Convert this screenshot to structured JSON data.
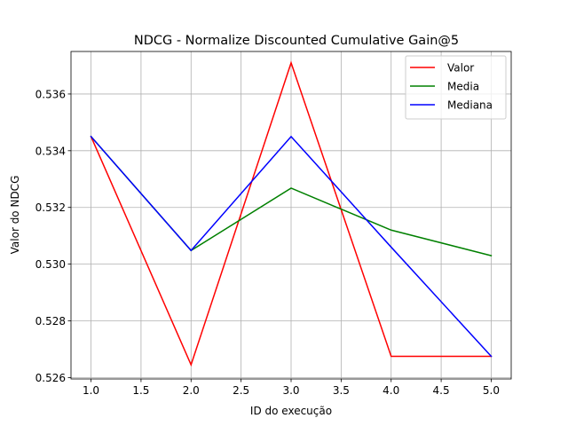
{
  "chart_data": {
    "type": "line",
    "title": "NDCG - Normalize Discounted Cumulative Gain@5",
    "xlabel": "ID do execução",
    "ylabel": "Valor do NDCG",
    "x": [
      1.0,
      2.0,
      3.0,
      4.0,
      5.0
    ],
    "xlim": [
      0.8,
      5.2
    ],
    "ylim": [
      0.52595,
      0.5375
    ],
    "xticks": [
      1.0,
      1.5,
      2.0,
      2.5,
      3.0,
      3.5,
      4.0,
      4.5,
      5.0
    ],
    "xtick_labels": [
      "1.0",
      "1.5",
      "2.0",
      "2.5",
      "3.0",
      "3.5",
      "4.0",
      "4.5",
      "5.0"
    ],
    "yticks": [
      0.526,
      0.528,
      0.53,
      0.532,
      0.534,
      0.536
    ],
    "ytick_labels": [
      "0.526",
      "0.528",
      "0.530",
      "0.532",
      "0.534",
      "0.536"
    ],
    "grid": true,
    "legend_position": "top-right",
    "series": [
      {
        "name": "Valor",
        "color": "#ff0000",
        "values": [
          0.5345,
          0.52645,
          0.5371,
          0.52675,
          0.52675
        ]
      },
      {
        "name": "Media",
        "color": "#008000",
        "values": [
          0.5345,
          0.53048,
          0.53268,
          0.5312,
          0.5303
        ]
      },
      {
        "name": "Mediana",
        "color": "#0000ff",
        "values": [
          0.5345,
          0.53048,
          0.5345,
          0.5306,
          0.52675
        ]
      }
    ]
  }
}
